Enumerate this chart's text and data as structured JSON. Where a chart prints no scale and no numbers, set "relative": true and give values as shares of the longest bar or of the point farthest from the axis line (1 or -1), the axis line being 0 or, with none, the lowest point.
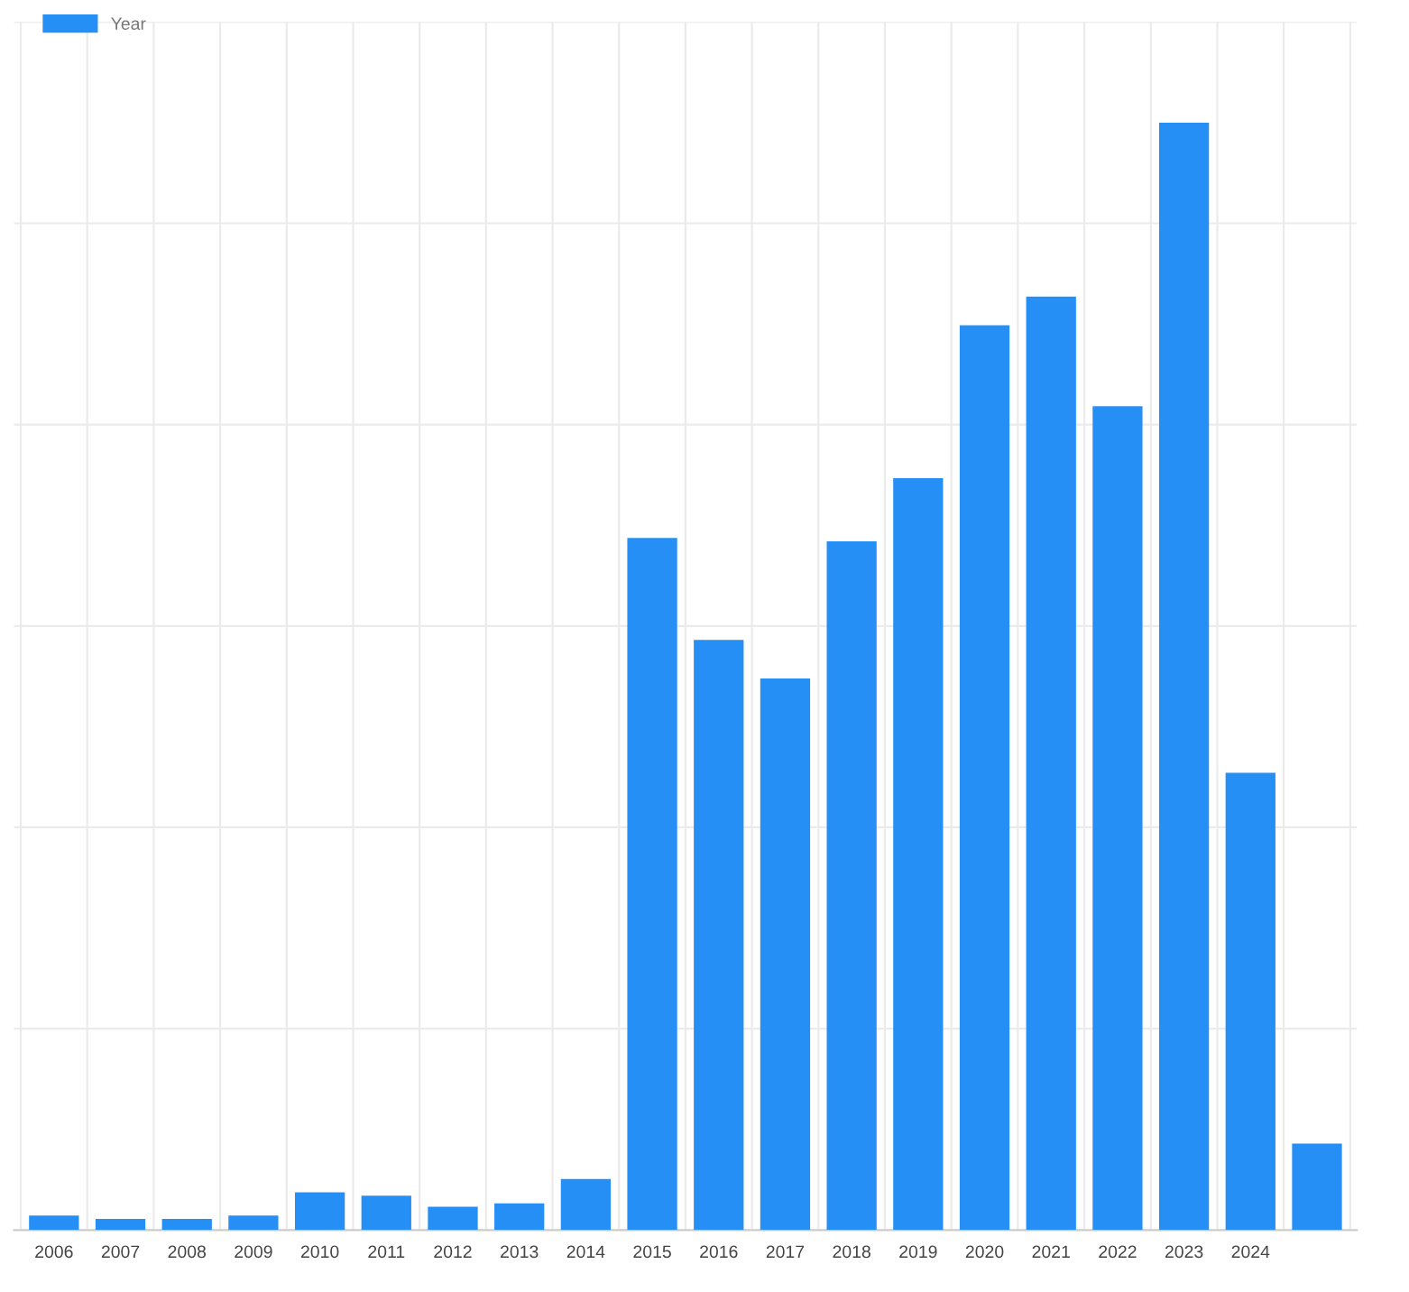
{
  "chart_data": {
    "type": "bar",
    "relative": true,
    "categories": [
      "2006",
      "2007",
      "2008",
      "2009",
      "2010",
      "2011",
      "2012",
      "2013",
      "2014",
      "2015",
      "2016",
      "2017",
      "2018",
      "2019",
      "2020",
      "2021",
      "2022",
      "2023",
      "2024",
      null
    ],
    "series": [
      {
        "name": "Year",
        "color": "#258ff5",
        "values": [
          0.013,
          0.01,
          0.01,
          0.013,
          0.034,
          0.031,
          0.021,
          0.024,
          0.046,
          0.625,
          0.533,
          0.498,
          0.622,
          0.679,
          0.817,
          0.843,
          0.744,
          1,
          0.413,
          0.078
        ]
      }
    ],
    "grid": true,
    "legend": "top left"
  }
}
